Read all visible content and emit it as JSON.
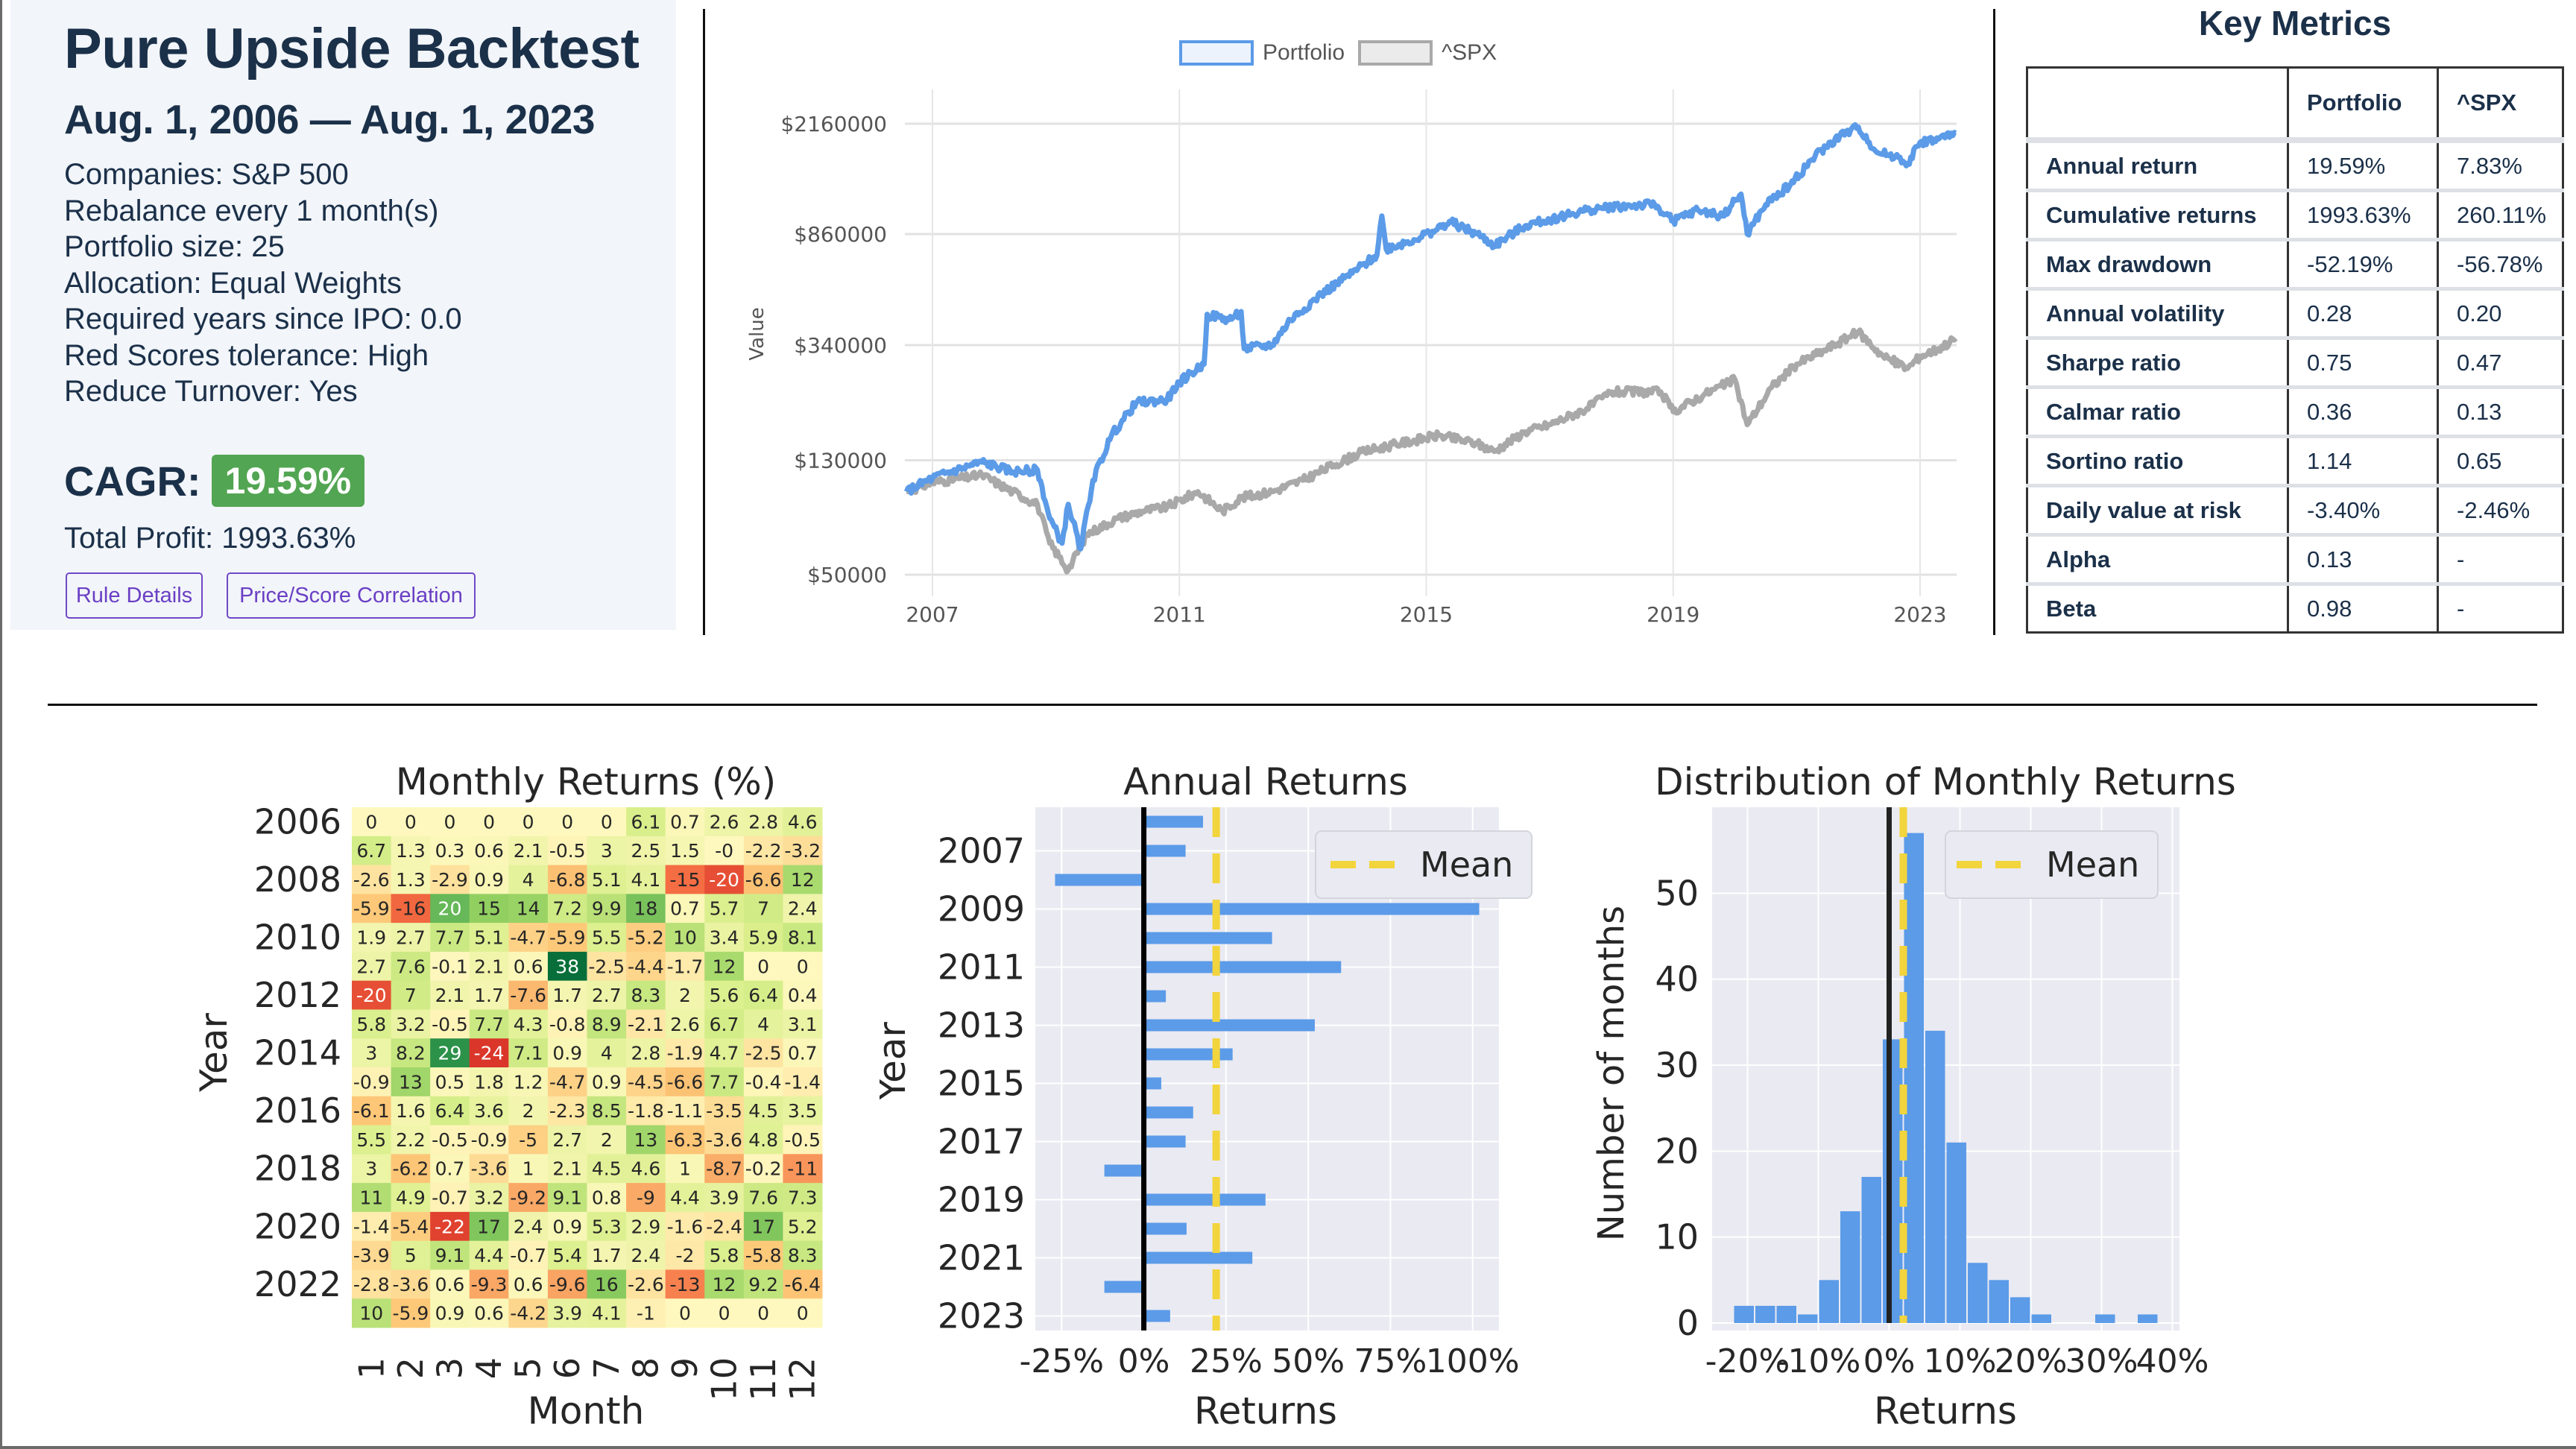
{
  "summary": {
    "title": "Pure Upside Backtest",
    "date_range": "Aug. 1, 2006 — Aug. 1, 2023",
    "settings": [
      "Companies: S&P 500",
      "Rebalance every 1 month(s)",
      "Portfolio size: 25",
      "Allocation: Equal Weights",
      "Required years since IPO: 0.0",
      "Red Scores tolerance: High",
      "Reduce Turnover: Yes"
    ],
    "cagr_label": "CAGR:",
    "cagr_value": "19.59%",
    "total_profit": "Total Profit: 1993.63%",
    "buttons": {
      "rule_details": "Rule Details",
      "price_score_correlation": "Price/Score Correlation"
    }
  },
  "key_metrics": {
    "title": "Key Metrics",
    "columns": [
      "",
      "Portfolio",
      "^SPX"
    ],
    "rows": [
      [
        "Annual return",
        "19.59%",
        "7.83%"
      ],
      [
        "Cumulative returns",
        "1993.63%",
        "260.11%"
      ],
      [
        "Max drawdown",
        "-52.19%",
        "-56.78%"
      ],
      [
        "Annual volatility",
        "0.28",
        "0.20"
      ],
      [
        "Sharpe ratio",
        "0.75",
        "0.47"
      ],
      [
        "Calmar ratio",
        "0.36",
        "0.13"
      ],
      [
        "Sortino ratio",
        "1.14",
        "0.65"
      ],
      [
        "Daily value at risk",
        "-3.40%",
        "-2.46%"
      ],
      [
        "Alpha",
        "0.13",
        "-"
      ],
      [
        "Beta",
        "0.98",
        "-"
      ]
    ]
  },
  "colors": {
    "portfolio": "#5b9be8",
    "spx": "#a9a9a9",
    "mean": "#f2d43d",
    "bar": "#5b9be8",
    "cagr_badge": "#52a552",
    "button": "#6a3fc4"
  },
  "chart_data": [
    {
      "type": "line",
      "title": "",
      "ylabel": "Value",
      "yscale": "log",
      "ylim": [
        50000,
        2160000
      ],
      "yticks": [
        "$2160000",
        "$860000",
        "$340000",
        "$130000",
        "$50000"
      ],
      "ytick_values": [
        2160000,
        860000,
        340000,
        130000,
        50000
      ],
      "xticks": [
        "2007",
        "2011",
        "2015",
        "2019",
        "2023"
      ],
      "xtick_values": [
        2007,
        2011,
        2015,
        2019,
        2023
      ],
      "xlim": [
        2006.58,
        2023.58
      ],
      "grid": true,
      "legend": "top-center",
      "series": [
        {
          "name": "Portfolio",
          "x": [
            2006.58,
            2007.0,
            2007.5,
            2007.8,
            2008.3,
            2008.7,
            2008.9,
            2009.1,
            2009.2,
            2009.4,
            2009.6,
            2009.9,
            2010.3,
            2010.8,
            2011.0,
            2011.4,
            2011.45,
            2011.8,
            2012.0,
            2012.05,
            2012.5,
            2012.8,
            2013.3,
            2013.8,
            2014.2,
            2014.28,
            2014.35,
            2014.8,
            2015.1,
            2015.4,
            2015.9,
            2016.1,
            2016.6,
            2017.0,
            2017.6,
            2018.0,
            2018.7,
            2019.0,
            2019.4,
            2019.8,
            2020.1,
            2020.2,
            2020.5,
            2020.9,
            2021.3,
            2021.7,
            2022.0,
            2022.3,
            2022.6,
            2022.8,
            2023.0,
            2023.3,
            2023.58
          ],
          "values": [
            100000,
            112000,
            122000,
            128000,
            118000,
            120000,
            80000,
            65000,
            90000,
            62000,
            110000,
            160000,
            210000,
            215000,
            250000,
            290000,
            440000,
            420000,
            450000,
            330000,
            340000,
            420000,
            520000,
            620000,
            720000,
            1000000,
            760000,
            820000,
            880000,
            950000,
            840000,
            780000,
            920000,
            970000,
            1050000,
            1080000,
            1100000,
            960000,
            1050000,
            1000000,
            1200000,
            860000,
            1100000,
            1300000,
            1650000,
            1950000,
            2100000,
            1700000,
            1650000,
            1550000,
            1850000,
            1900000,
            2000000
          ]
        },
        {
          "name": "^SPX",
          "x": [
            2006.58,
            2007.0,
            2007.5,
            2007.8,
            2008.3,
            2008.7,
            2008.9,
            2009.2,
            2009.5,
            2010.0,
            2010.4,
            2010.8,
            2011.3,
            2011.7,
            2012.0,
            2012.5,
            2013.0,
            2013.5,
            2014.0,
            2014.6,
            2015.2,
            2015.8,
            2016.1,
            2016.6,
            2017.0,
            2017.6,
            2018.0,
            2018.8,
            2019.0,
            2019.5,
            2020.0,
            2020.2,
            2020.6,
            2021.0,
            2021.5,
            2022.0,
            2022.4,
            2022.8,
            2023.0,
            2023.3,
            2023.58
          ],
          "values": [
            100000,
            108000,
            112000,
            115000,
            100000,
            90000,
            65000,
            52000,
            70000,
            80000,
            85000,
            88000,
            100000,
            85000,
            95000,
            100000,
            110000,
            125000,
            140000,
            150000,
            160000,
            150000,
            140000,
            165000,
            175000,
            200000,
            230000,
            230000,
            195000,
            225000,
            255000,
            175000,
            240000,
            290000,
            330000,
            380000,
            310000,
            280000,
            310000,
            330000,
            360000
          ]
        }
      ]
    },
    {
      "type": "heatmap",
      "title": "Monthly Returns (%)",
      "xlabel": "Month",
      "ylabel": "Year",
      "x": [
        "1",
        "2",
        "3",
        "4",
        "5",
        "6",
        "7",
        "8",
        "9",
        "10",
        "11",
        "12"
      ],
      "y": [
        "2006",
        "2007",
        "2008",
        "2009",
        "2010",
        "2011",
        "2012",
        "2013",
        "2014",
        "2015",
        "2016",
        "2017",
        "2018",
        "2019",
        "2020",
        "2021",
        "2022",
        "2023"
      ],
      "yticks": [
        "2006",
        "2008",
        "2010",
        "2012",
        "2014",
        "2016",
        "2018",
        "2020",
        "2022"
      ],
      "values": [
        [
          "0",
          "0",
          "0",
          "0",
          "0",
          "0",
          "0",
          "6.1",
          "0.7",
          "2.6",
          "2.8",
          "4.6"
        ],
        [
          "6.7",
          "1.3",
          "0.3",
          "0.6",
          "2.1",
          "-0.5",
          "3",
          "2.5",
          "1.5",
          "-0",
          "-2.2",
          "-3.2"
        ],
        [
          "-2.6",
          "1.3",
          "-2.9",
          "0.9",
          "4",
          "-6.8",
          "5.1",
          "4.1",
          "-15",
          "-20",
          "-6.6",
          "12"
        ],
        [
          "-5.9",
          "-16",
          "20",
          "15",
          "14",
          "7.2",
          "9.9",
          "18",
          "0.7",
          "5.7",
          "7",
          "2.4"
        ],
        [
          "1.9",
          "2.7",
          "7.7",
          "5.1",
          "-4.7",
          "-5.9",
          "5.5",
          "-5.2",
          "10",
          "3.4",
          "5.9",
          "8.1"
        ],
        [
          "2.7",
          "7.6",
          "-0.1",
          "2.1",
          "0.6",
          "38",
          "-2.5",
          "-4.4",
          "-1.7",
          "12",
          "0",
          "0"
        ],
        [
          "-20",
          "7",
          "2.1",
          "1.7",
          "-7.6",
          "1.7",
          "2.7",
          "8.3",
          "2",
          "5.6",
          "6.4",
          "0.4"
        ],
        [
          "5.8",
          "3.2",
          "-0.5",
          "7.7",
          "4.3",
          "-0.8",
          "8.9",
          "-2.1",
          "2.6",
          "6.7",
          "4",
          "3.1"
        ],
        [
          "3",
          "8.2",
          "29",
          "-24",
          "7.1",
          "0.9",
          "4",
          "2.8",
          "-1.9",
          "4.7",
          "-2.5",
          "0.7"
        ],
        [
          "-0.9",
          "13",
          "0.5",
          "1.8",
          "1.2",
          "-4.7",
          "0.9",
          "-4.5",
          "-6.6",
          "7.7",
          "-0.4",
          "-1.4"
        ],
        [
          "-6.1",
          "1.6",
          "6.4",
          "3.6",
          "2",
          "-2.3",
          "8.5",
          "-1.8",
          "-1.1",
          "-3.5",
          "4.5",
          "3.5"
        ],
        [
          "5.5",
          "2.2",
          "-0.5",
          "-0.9",
          "-5",
          "2.7",
          "2",
          "13",
          "-6.3",
          "-3.6",
          "4.8",
          "-0.5"
        ],
        [
          "3",
          "-6.2",
          "0.7",
          "-3.6",
          "1",
          "2.1",
          "4.5",
          "4.6",
          "1",
          "-8.7",
          "-0.2",
          "-11"
        ],
        [
          "11",
          "4.9",
          "-0.7",
          "3.2",
          "-9.2",
          "9.1",
          "0.8",
          "-9",
          "4.4",
          "3.9",
          "7.6",
          "7.3"
        ],
        [
          "-1.4",
          "-5.4",
          "-22",
          "17",
          "2.4",
          "0.9",
          "5.3",
          "2.9",
          "-1.6",
          "-2.4",
          "17",
          "5.2"
        ],
        [
          "-3.9",
          "5",
          "9.1",
          "4.4",
          "-0.7",
          "5.4",
          "1.7",
          "2.4",
          "-2",
          "5.8",
          "-5.8",
          "8.3"
        ],
        [
          "-2.8",
          "-3.6",
          "0.6",
          "-9.3",
          "0.6",
          "-9.6",
          "16",
          "-2.6",
          "-13",
          "12",
          "9.2",
          "-6.4"
        ],
        [
          "10",
          "-5.9",
          "0.9",
          "0.6",
          "-4.2",
          "3.9",
          "4.1",
          "-1",
          "0",
          "0",
          "0",
          "0"
        ]
      ]
    },
    {
      "type": "bar",
      "orientation": "horizontal",
      "title": "Annual Returns",
      "xlabel": "Returns",
      "ylabel": "Year",
      "categories": [
        "2006",
        "2007",
        "2008",
        "2009",
        "2010",
        "2011",
        "2012",
        "2013",
        "2014",
        "2015",
        "2016",
        "2017",
        "2018",
        "2019",
        "2020",
        "2021",
        "2022",
        "2023"
      ],
      "yticks": [
        "2007",
        "2009",
        "2011",
        "2013",
        "2015",
        "2017",
        "2019",
        "2021",
        "2023"
      ],
      "values": [
        18,
        12.7,
        -27,
        102,
        39,
        60,
        6.7,
        52,
        27,
        5.3,
        15,
        12.7,
        -12,
        37,
        13,
        33,
        -12,
        8
      ],
      "mean": 22,
      "xlim": [
        -33,
        108
      ],
      "xticks": [
        "-25%",
        "0%",
        "25%",
        "50%",
        "75%",
        "100%"
      ],
      "xtick_values": [
        -25,
        0,
        25,
        50,
        75,
        100
      ],
      "legend": [
        "Mean"
      ],
      "legend_position": "top-right"
    },
    {
      "type": "bar",
      "subtype": "histogram",
      "title": "Distribution of Monthly Returns",
      "xlabel": "Returns",
      "ylabel": "Number of months",
      "bin_start": -22,
      "bin_width": 3,
      "counts": [
        2,
        2,
        2,
        1,
        5,
        13,
        17,
        33,
        57,
        34,
        21,
        7,
        5,
        3,
        1,
        0,
        0,
        1,
        0,
        1
      ],
      "mean": 2,
      "xlim": [
        -25,
        41
      ],
      "ylim": [
        0,
        60
      ],
      "xticks": [
        "-20%",
        "-10%",
        "0%",
        "10%",
        "20%",
        "30%",
        "40%"
      ],
      "xtick_values": [
        -20,
        -10,
        0,
        10,
        20,
        30,
        40
      ],
      "yticks": [
        "0",
        "10",
        "20",
        "30",
        "40",
        "50"
      ],
      "ytick_values": [
        0,
        10,
        20,
        30,
        40,
        50
      ],
      "legend": [
        "Mean"
      ],
      "legend_position": "top-right"
    }
  ]
}
